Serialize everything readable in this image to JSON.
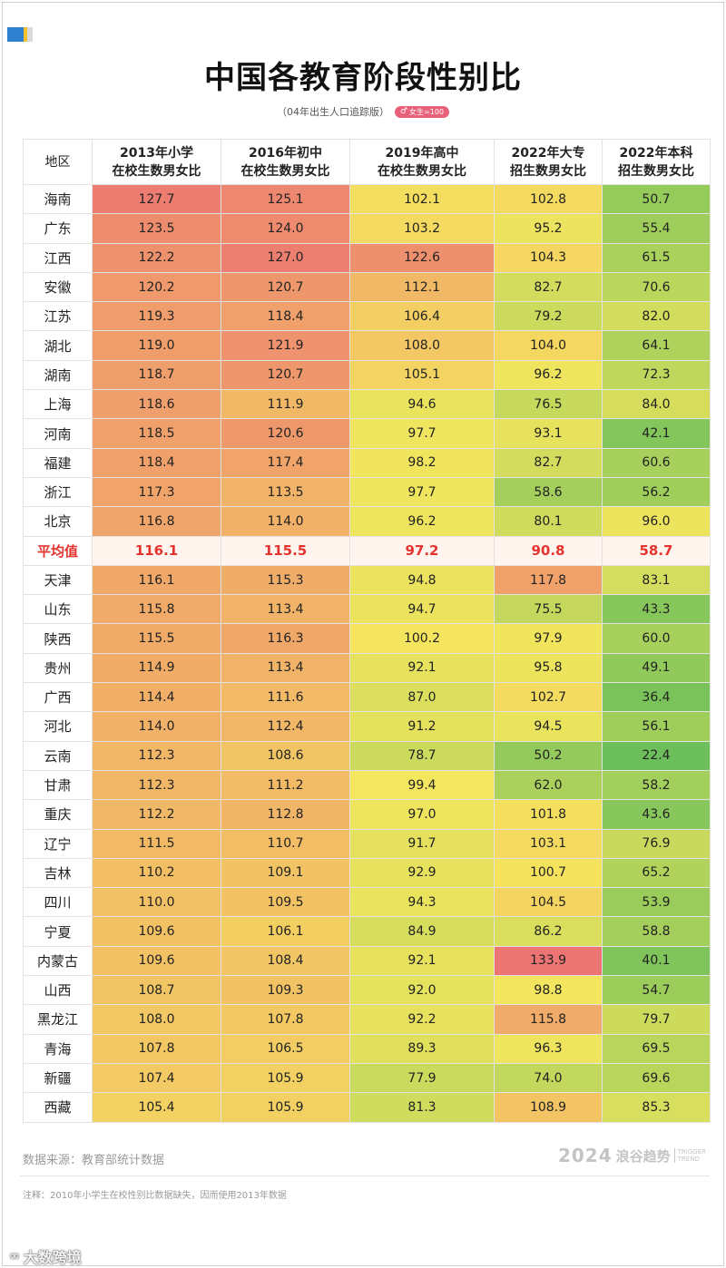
{
  "title": "中国各教育阶段性别比",
  "subtitle": "（04年出生人口追踪版）",
  "badge": {
    "symbol": "♂",
    "text": "女生=100"
  },
  "colors": {
    "low": "#6cbf5a",
    "mid": "#f5e65e",
    "high": "#ec7473",
    "average_text": "#e5342f"
  },
  "chart_data": {
    "type": "table",
    "columns": [
      "地区",
      "2013年小学\n在校生数男女比",
      "2016年初中\n在校生数男女比",
      "2019年高中\n在校生数男女比",
      "2022年大专\n招生数男女比",
      "2022年本科\n招生数男女比"
    ],
    "rows": [
      [
        "海南",
        "127.7",
        "125.1",
        "102.1",
        "102.8",
        "50.7"
      ],
      [
        "广东",
        "123.5",
        "124.0",
        "103.2",
        "95.2",
        "55.4"
      ],
      [
        "江西",
        "122.2",
        "127.0",
        "122.6",
        "104.3",
        "61.5"
      ],
      [
        "安徽",
        "120.2",
        "120.7",
        "112.1",
        "82.7",
        "70.6"
      ],
      [
        "江苏",
        "119.3",
        "118.4",
        "106.4",
        "79.2",
        "82.0"
      ],
      [
        "湖北",
        "119.0",
        "121.9",
        "108.0",
        "104.0",
        "64.1"
      ],
      [
        "湖南",
        "118.7",
        "120.7",
        "105.1",
        "96.2",
        "72.3"
      ],
      [
        "上海",
        "118.6",
        "111.9",
        "94.6",
        "76.5",
        "84.0"
      ],
      [
        "河南",
        "118.5",
        "120.6",
        "97.7",
        "93.1",
        "42.1"
      ],
      [
        "福建",
        "118.4",
        "117.4",
        "98.2",
        "82.7",
        "60.6"
      ],
      [
        "浙江",
        "117.3",
        "113.5",
        "97.7",
        "58.6",
        "56.2"
      ],
      [
        "北京",
        "116.8",
        "114.0",
        "96.2",
        "80.1",
        "96.0"
      ],
      [
        "平均值",
        "116.1",
        "115.5",
        "97.2",
        "90.8",
        "58.7"
      ],
      [
        "天津",
        "116.1",
        "115.3",
        "94.8",
        "117.8",
        "83.1"
      ],
      [
        "山东",
        "115.8",
        "113.4",
        "94.7",
        "75.5",
        "43.3"
      ],
      [
        "陕西",
        "115.5",
        "116.3",
        "100.2",
        "97.9",
        "60.0"
      ],
      [
        "贵州",
        "114.9",
        "113.4",
        "92.1",
        "95.8",
        "49.1"
      ],
      [
        "广西",
        "114.4",
        "111.6",
        "87.0",
        "102.7",
        "36.4"
      ],
      [
        "河北",
        "114.0",
        "112.4",
        "91.2",
        "94.5",
        "56.1"
      ],
      [
        "云南",
        "112.3",
        "108.6",
        "78.7",
        "50.2",
        "22.4"
      ],
      [
        "甘肃",
        "112.3",
        "111.2",
        "99.4",
        "62.0",
        "58.2"
      ],
      [
        "重庆",
        "112.2",
        "112.8",
        "97.0",
        "101.8",
        "43.6"
      ],
      [
        "辽宁",
        "111.5",
        "110.7",
        "91.7",
        "103.1",
        "76.9"
      ],
      [
        "吉林",
        "110.2",
        "109.1",
        "92.9",
        "100.7",
        "65.2"
      ],
      [
        "四川",
        "110.0",
        "109.5",
        "94.3",
        "104.5",
        "53.9"
      ],
      [
        "宁夏",
        "109.6",
        "106.1",
        "84.9",
        "86.2",
        "58.8"
      ],
      [
        "内蒙古",
        "109.6",
        "108.4",
        "92.1",
        "133.9",
        "40.1"
      ],
      [
        "山西",
        "108.7",
        "109.3",
        "92.0",
        "98.8",
        "54.7"
      ],
      [
        "黑龙江",
        "108.0",
        "107.8",
        "92.2",
        "115.8",
        "79.7"
      ],
      [
        "青海",
        "107.8",
        "106.5",
        "89.3",
        "96.3",
        "69.5"
      ],
      [
        "新疆",
        "107.4",
        "105.9",
        "77.9",
        "74.0",
        "69.6"
      ],
      [
        "西藏",
        "105.4",
        "105.9",
        "81.3",
        "108.9",
        "85.3"
      ]
    ]
  },
  "footer": {
    "source": "数据来源：教育部统计数据",
    "brand_year": "2024",
    "brand_cn": "浪谷趋势",
    "brand_en_1": "TRIGGER",
    "brand_en_2": "TREND",
    "note": "注释：2010年小学生在校性别比数据缺失，因而使用2013年数据"
  },
  "watermark": "大数跨境"
}
